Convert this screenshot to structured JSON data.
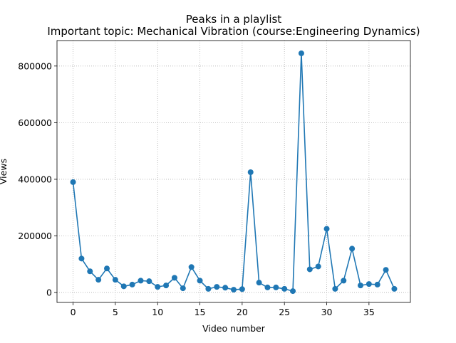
{
  "chart_data": {
    "type": "line",
    "title": "Peaks in a playlist",
    "subtitle": "Important topic: Mechanical Vibration (course:Engineering Dynamics)",
    "xlabel": "Video number",
    "ylabel": "Views",
    "xlim": [
      -1.9,
      39.9
    ],
    "ylim": [
      -35000,
      890000
    ],
    "xticks": [
      0,
      5,
      10,
      15,
      20,
      25,
      30,
      35
    ],
    "yticks": [
      0,
      200000,
      400000,
      600000,
      800000
    ],
    "xtick_labels": [
      "0",
      "5",
      "10",
      "15",
      "20",
      "25",
      "30",
      "35"
    ],
    "ytick_labels": [
      "0",
      "200000",
      "400000",
      "600000",
      "800000"
    ],
    "grid": true,
    "grid_style": "dotted",
    "marker": "circle",
    "series": [
      {
        "color": "#1f77b4",
        "x": [
          0,
          1,
          2,
          3,
          4,
          5,
          6,
          7,
          8,
          9,
          10,
          11,
          12,
          13,
          14,
          15,
          16,
          17,
          18,
          19,
          20,
          21,
          22,
          23,
          24,
          25,
          26,
          27,
          28,
          29,
          30,
          31,
          32,
          33,
          34,
          35,
          36,
          37,
          38
        ],
        "y": [
          390000,
          120000,
          75000,
          45000,
          85000,
          45000,
          22000,
          28000,
          42000,
          40000,
          20000,
          25000,
          52000,
          15000,
          90000,
          42000,
          13000,
          20000,
          17000,
          10000,
          12000,
          425000,
          35000,
          18000,
          18000,
          13000,
          5000,
          845000,
          82000,
          92000,
          225000,
          13000,
          42000,
          155000,
          25000,
          30000,
          28000,
          80000,
          13000
        ]
      }
    ]
  }
}
